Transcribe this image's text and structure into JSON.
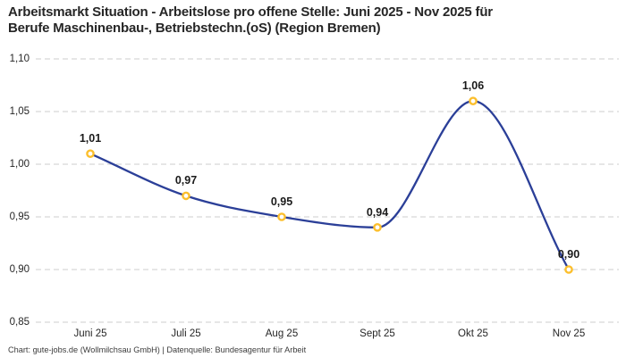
{
  "header": {
    "title_line1": "Arbeitsmarkt Situation - Arbeitslose pro offene Stelle: Juni 2025 - Nov 2025 für",
    "title_line2": "Berufe Maschinenbau-, Betriebstechn.(oS) (Region Bremen)"
  },
  "footer": {
    "text": "Chart: gute-jobs.de (Wollmilchsau GmbH) | Datenquelle: Bundesagentur für Arbeit"
  },
  "chart_data": {
    "type": "line",
    "title": "Arbeitsmarkt Situation - Arbeitslose pro offene Stelle: Juni 2025 - Nov 2025 für Berufe Maschinenbau-, Betriebstechn.(oS) (Region Bremen)",
    "categories": [
      "Juni 25",
      "Juli 25",
      "Aug 25",
      "Sept 25",
      "Okt 25",
      "Nov 25"
    ],
    "values": [
      1.01,
      0.97,
      0.95,
      0.94,
      1.06,
      0.9
    ],
    "point_labels": [
      "1,01",
      "0,97",
      "0,95",
      "0,94",
      "1,06",
      "0,90"
    ],
    "xlabel": "",
    "ylabel": "",
    "ylim": [
      0.85,
      1.1
    ],
    "ytick_values": [
      0.85,
      0.9,
      0.95,
      1.0,
      1.05,
      1.1
    ],
    "ytick_labels": [
      "0,85",
      "0,90",
      "0,95",
      "1,00",
      "1,05",
      "1,10"
    ],
    "grid": "horizontal-dashed",
    "legend": "none",
    "line_style": "smooth-monotone",
    "marker_style": "open-circle",
    "colors": {
      "line": "#2b3f98",
      "marker": "#fcbf2d",
      "marker_fill": "#ffffff",
      "grid": "#cccccc",
      "text": "#262626",
      "label": "#1a1a1a"
    }
  }
}
